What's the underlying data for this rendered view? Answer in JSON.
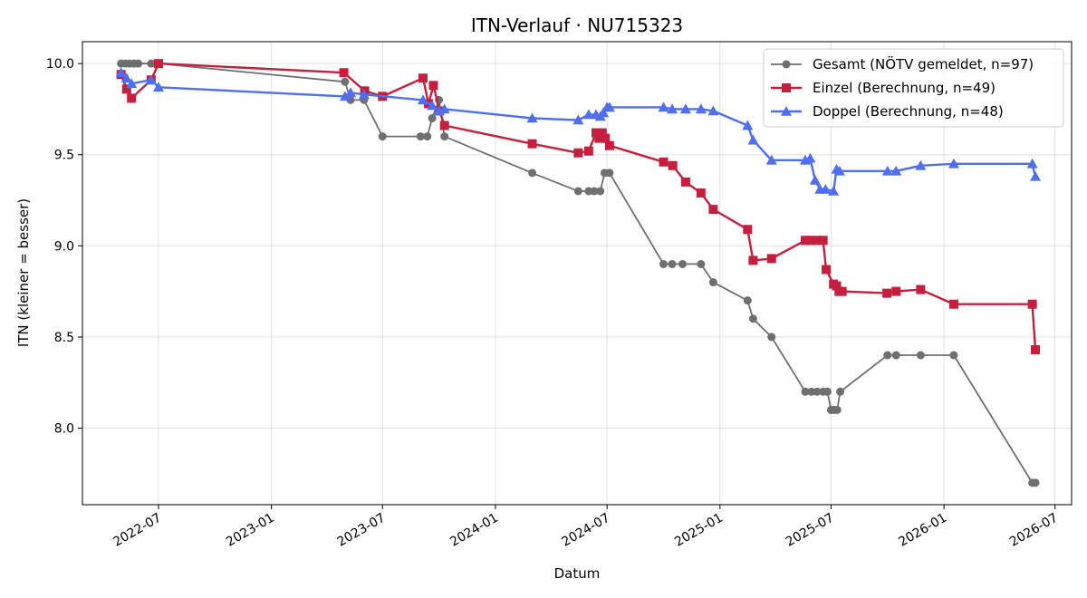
{
  "chart_data": {
    "type": "line",
    "title": "ITN-Verlauf · NU715323",
    "xlabel": "Datum",
    "ylabel": "ITN  (kleiner = besser)",
    "x_axis_type": "date",
    "xlim": [
      "2022-02-27",
      "2026-07-28"
    ],
    "ylim": [
      7.58,
      10.12
    ],
    "x_ticks": [
      "2022-07-01",
      "2023-01-01",
      "2023-07-01",
      "2024-01-01",
      "2024-07-01",
      "2025-01-01",
      "2025-07-01",
      "2026-01-01",
      "2026-07-01"
    ],
    "x_tick_labels": [
      "2022-07",
      "2023-01",
      "2023-07",
      "2024-01",
      "2024-07",
      "2025-01",
      "2025-07",
      "2026-01",
      "2026-07"
    ],
    "y_ticks": [
      8.0,
      8.5,
      9.0,
      9.5,
      10.0
    ],
    "y_tick_labels": [
      "8.0",
      "8.5",
      "9.0",
      "9.5",
      "10.0"
    ],
    "grid": true,
    "legend_position": "top-right",
    "series": [
      {
        "name": "Gesamt (NÖTV gemeldet, n=97)",
        "color": "#404040",
        "marker": "circle",
        "points": [
          [
            "2022-05-01",
            10.0
          ],
          [
            "2022-05-08",
            10.0
          ],
          [
            "2022-05-15",
            10.0
          ],
          [
            "2022-05-22",
            10.0
          ],
          [
            "2022-05-29",
            10.0
          ],
          [
            "2022-06-19",
            10.0
          ],
          [
            "2022-06-26",
            10.0
          ],
          [
            "2022-07-01",
            10.0
          ],
          [
            "2023-05-01",
            9.9
          ],
          [
            "2023-05-10",
            9.8
          ],
          [
            "2023-06-01",
            9.8
          ],
          [
            "2023-07-01",
            9.6
          ],
          [
            "2023-09-01",
            9.6
          ],
          [
            "2023-09-12",
            9.6
          ],
          [
            "2023-09-20",
            9.7
          ],
          [
            "2023-10-01",
            9.8
          ],
          [
            "2023-10-10",
            9.6
          ],
          [
            "2024-03-01",
            9.4
          ],
          [
            "2024-05-15",
            9.3
          ],
          [
            "2024-06-01",
            9.3
          ],
          [
            "2024-06-10",
            9.3
          ],
          [
            "2024-06-20",
            9.3
          ],
          [
            "2024-06-27",
            9.4
          ],
          [
            "2024-07-05",
            9.4
          ],
          [
            "2024-10-01",
            8.9
          ],
          [
            "2024-10-15",
            8.9
          ],
          [
            "2024-11-01",
            8.9
          ],
          [
            "2024-12-01",
            8.9
          ],
          [
            "2024-12-21",
            8.8
          ],
          [
            "2025-02-15",
            8.7
          ],
          [
            "2025-02-24",
            8.6
          ],
          [
            "2025-03-26",
            8.5
          ],
          [
            "2025-05-20",
            8.2
          ],
          [
            "2025-05-30",
            8.2
          ],
          [
            "2025-06-08",
            8.2
          ],
          [
            "2025-06-18",
            8.2
          ],
          [
            "2025-06-25",
            8.2
          ],
          [
            "2025-07-01",
            8.1
          ],
          [
            "2025-07-06",
            8.1
          ],
          [
            "2025-07-11",
            8.1
          ],
          [
            "2025-07-16",
            8.2
          ],
          [
            "2025-10-01",
            8.4
          ],
          [
            "2025-10-15",
            8.4
          ],
          [
            "2025-11-24",
            8.4
          ],
          [
            "2026-01-17",
            8.4
          ],
          [
            "2026-05-25",
            7.7
          ],
          [
            "2026-05-30",
            7.7
          ]
        ]
      },
      {
        "name": "Einzel (Berechnung, n=49)",
        "color": "#c4203e",
        "marker": "square",
        "points": [
          [
            "2022-05-01",
            9.94
          ],
          [
            "2022-05-10",
            9.86
          ],
          [
            "2022-05-18",
            9.81
          ],
          [
            "2022-06-19",
            9.91
          ],
          [
            "2022-07-01",
            10.0
          ],
          [
            "2023-04-29",
            9.95
          ],
          [
            "2023-06-02",
            9.85
          ],
          [
            "2023-07-01",
            9.82
          ],
          [
            "2023-09-05",
            9.92
          ],
          [
            "2023-09-14",
            9.78
          ],
          [
            "2023-09-22",
            9.88
          ],
          [
            "2023-10-02",
            9.74
          ],
          [
            "2023-10-10",
            9.66
          ],
          [
            "2024-03-01",
            9.56
          ],
          [
            "2024-05-15",
            9.51
          ],
          [
            "2024-06-01",
            9.52
          ],
          [
            "2024-06-13",
            9.62
          ],
          [
            "2024-06-18",
            9.59
          ],
          [
            "2024-06-23",
            9.62
          ],
          [
            "2024-06-28",
            9.59
          ],
          [
            "2024-07-05",
            9.55
          ],
          [
            "2024-10-01",
            9.46
          ],
          [
            "2024-10-16",
            9.44
          ],
          [
            "2024-11-06",
            9.35
          ],
          [
            "2024-12-01",
            9.29
          ],
          [
            "2024-12-21",
            9.2
          ],
          [
            "2025-02-15",
            9.09
          ],
          [
            "2025-02-24",
            8.92
          ],
          [
            "2025-03-26",
            8.93
          ],
          [
            "2025-05-20",
            9.03
          ],
          [
            "2025-05-28",
            9.03
          ],
          [
            "2025-06-08",
            9.03
          ],
          [
            "2025-06-18",
            9.03
          ],
          [
            "2025-06-23",
            8.87
          ],
          [
            "2025-07-05",
            8.79
          ],
          [
            "2025-07-10",
            8.78
          ],
          [
            "2025-07-14",
            8.75
          ],
          [
            "2025-07-19",
            8.75
          ],
          [
            "2025-09-30",
            8.74
          ],
          [
            "2025-10-15",
            8.75
          ],
          [
            "2025-11-24",
            8.76
          ],
          [
            "2026-01-17",
            8.68
          ],
          [
            "2026-05-25",
            8.68
          ],
          [
            "2026-05-30",
            8.43
          ]
        ]
      },
      {
        "name": "Doppel (Berechnung, n=48)",
        "color": "#4f6ef0",
        "marker": "triangle",
        "points": [
          [
            "2022-05-01",
            9.95
          ],
          [
            "2022-05-10",
            9.92
          ],
          [
            "2022-05-18",
            9.89
          ],
          [
            "2022-06-19",
            9.91
          ],
          [
            "2022-07-01",
            9.87
          ],
          [
            "2023-05-01",
            9.82
          ],
          [
            "2023-05-10",
            9.84
          ],
          [
            "2023-06-01",
            9.83
          ],
          [
            "2023-09-05",
            9.8
          ],
          [
            "2023-09-20",
            9.77
          ],
          [
            "2023-10-01",
            9.74
          ],
          [
            "2023-10-10",
            9.75
          ],
          [
            "2024-03-01",
            9.7
          ],
          [
            "2024-05-15",
            9.69
          ],
          [
            "2024-06-01",
            9.72
          ],
          [
            "2024-06-13",
            9.72
          ],
          [
            "2024-06-20",
            9.71
          ],
          [
            "2024-06-25",
            9.73
          ],
          [
            "2024-07-01",
            9.76
          ],
          [
            "2024-07-05",
            9.76
          ],
          [
            "2024-10-01",
            9.76
          ],
          [
            "2024-10-15",
            9.75
          ],
          [
            "2024-11-06",
            9.75
          ],
          [
            "2024-12-01",
            9.75
          ],
          [
            "2024-12-21",
            9.74
          ],
          [
            "2025-02-15",
            9.66
          ],
          [
            "2025-02-24",
            9.58
          ],
          [
            "2025-03-26",
            9.47
          ],
          [
            "2025-05-20",
            9.47
          ],
          [
            "2025-05-28",
            9.48
          ],
          [
            "2025-06-05",
            9.36
          ],
          [
            "2025-06-13",
            9.31
          ],
          [
            "2025-06-22",
            9.31
          ],
          [
            "2025-07-05",
            9.3
          ],
          [
            "2025-07-10",
            9.42
          ],
          [
            "2025-07-15",
            9.41
          ],
          [
            "2025-10-01",
            9.41
          ],
          [
            "2025-10-15",
            9.41
          ],
          [
            "2025-11-24",
            9.44
          ],
          [
            "2026-01-17",
            9.45
          ],
          [
            "2026-05-25",
            9.45
          ],
          [
            "2026-05-30",
            9.38
          ]
        ]
      }
    ]
  }
}
